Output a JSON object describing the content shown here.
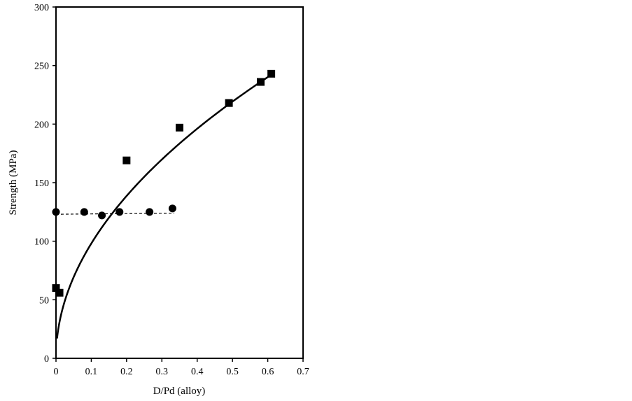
{
  "chart_data": {
    "type": "scatter",
    "xlabel": "D/Pd (alloy)",
    "ylabel": "Strength (MPa)",
    "xlim": [
      0,
      0.7
    ],
    "ylim": [
      0,
      300
    ],
    "x_ticks": [
      "0",
      "0.1",
      "0.2",
      "0.3",
      "0.4",
      "0.5",
      "0.6",
      "0.7"
    ],
    "y_ticks": [
      "0",
      "50",
      "100",
      "150",
      "200",
      "250",
      "300"
    ],
    "grid": false,
    "legend": "none",
    "series": [
      {
        "marker": "square",
        "color": "#000000",
        "points": [
          {
            "x": 0.0,
            "y": 60
          },
          {
            "x": 0.01,
            "y": 56
          },
          {
            "x": 0.2,
            "y": 169
          },
          {
            "x": 0.35,
            "y": 197
          },
          {
            "x": 0.49,
            "y": 218
          },
          {
            "x": 0.58,
            "y": 236
          },
          {
            "x": 0.61,
            "y": 243
          }
        ],
        "fit": {
          "style": "solid",
          "x": [
            0.003,
            0.61
          ],
          "equation": "y = 310 * x^0.5"
        }
      },
      {
        "marker": "circle",
        "color": "#000000",
        "points": [
          {
            "x": 0.0,
            "y": 125
          },
          {
            "x": 0.08,
            "y": 125
          },
          {
            "x": 0.13,
            "y": 122
          },
          {
            "x": 0.18,
            "y": 125
          },
          {
            "x": 0.265,
            "y": 125
          },
          {
            "x": 0.33,
            "y": 128
          }
        ],
        "fit": {
          "style": "dashed",
          "x": [
            0.0,
            0.335
          ],
          "equation": "y = 123 + 3 * x"
        }
      }
    ]
  }
}
